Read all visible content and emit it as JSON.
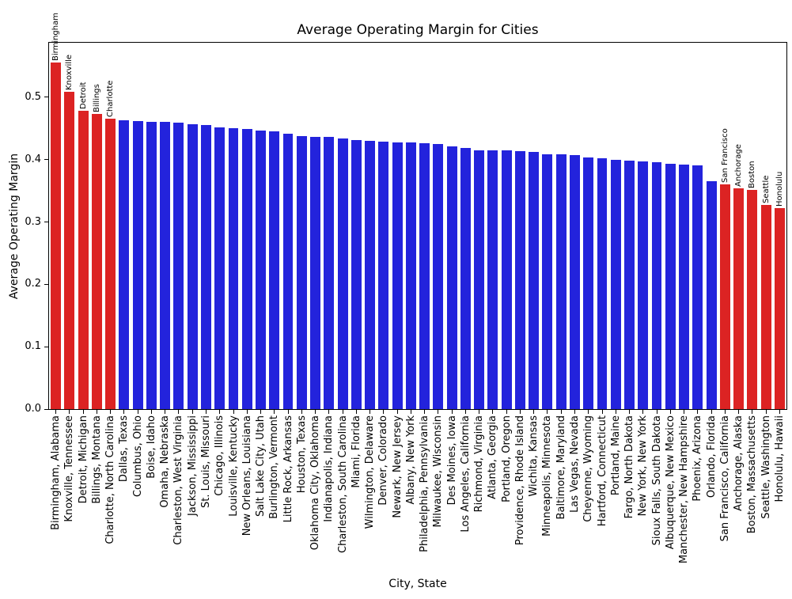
{
  "chart_data": {
    "type": "bar",
    "title": "Average Operating Margin for Cities",
    "xlabel": "City, State",
    "ylabel": "Average Operating Margin",
    "ylim": [
      0,
      0.5875
    ],
    "yticks": [
      0.0,
      0.1,
      0.2,
      0.3,
      0.4,
      0.5
    ],
    "grid": false,
    "legend": null,
    "bar_color_default": "#2323dc",
    "bar_color_highlight": "#dc2323",
    "text_color": "#000000",
    "categories": [
      "Birmingham, Alabama",
      "Knoxville, Tennessee",
      "Detroit, Michigan",
      "Billings, Montana",
      "Charlotte, North Carolina",
      "Dallas, Texas",
      "Columbus, Ohio",
      "Boise, Idaho",
      "Omaha, Nebraska",
      "Charleston, West Virginia",
      "Jackson, Mississippi",
      "St. Louis, Missouri",
      "Chicago, Illinois",
      "Louisville, Kentucky",
      "New Orleans, Louisiana",
      "Salt Lake City, Utah",
      "Burlington, Vermont",
      "Little Rock, Arkansas",
      "Houston, Texas",
      "Oklahoma City, Oklahoma",
      "Indianapolis, Indiana",
      "Charleston, South Carolina",
      "Miami, Florida",
      "Wilmington, Delaware",
      "Denver, Colorado",
      "Newark, New Jersey",
      "Albany, New York",
      "Philadelphia, Pennsylvania",
      "Milwaukee, Wisconsin",
      "Des Moines, Iowa",
      "Los Angeles, California",
      "Richmond, Virginia",
      "Atlanta, Georgia",
      "Portland, Oregon",
      "Providence, Rhode Island",
      "Wichita, Kansas",
      "Minneapolis, Minnesota",
      "Baltimore, Maryland",
      "Las Vegas, Nevada",
      "Cheyenne, Wyoming",
      "Hartford, Connecticut",
      "Portland, Maine",
      "Fargo, North Dakota",
      "New York, New York",
      "Sioux Falls, South Dakota",
      "Albuquerque, New Mexico",
      "Manchester, New Hampshire",
      "Phoenix, Arizona",
      "Orlando, Florida",
      "San Francisco, California",
      "Anchorage, Alaska",
      "Boston, Massachusetts",
      "Seattle, Washington",
      "Honolulu, Hawaii"
    ],
    "values": [
      0.556,
      0.509,
      0.478,
      0.473,
      0.466,
      0.463,
      0.462,
      0.461,
      0.46,
      0.459,
      0.457,
      0.455,
      0.452,
      0.45,
      0.449,
      0.447,
      0.445,
      0.442,
      0.438,
      0.437,
      0.436,
      0.434,
      0.431,
      0.43,
      0.429,
      0.428,
      0.428,
      0.427,
      0.425,
      0.421,
      0.419,
      0.415,
      0.415,
      0.415,
      0.414,
      0.412,
      0.409,
      0.409,
      0.407,
      0.404,
      0.402,
      0.4,
      0.399,
      0.397,
      0.396,
      0.394,
      0.392,
      0.391,
      0.365,
      0.36,
      0.354,
      0.351,
      0.328,
      0.322
    ],
    "highlights": [
      {
        "index": 0,
        "label": "Birmingham"
      },
      {
        "index": 1,
        "label": "Knoxville"
      },
      {
        "index": 2,
        "label": "Detroit"
      },
      {
        "index": 3,
        "label": "Billings"
      },
      {
        "index": 4,
        "label": "Charlotte"
      },
      {
        "index": 49,
        "label": "San Francisco"
      },
      {
        "index": 50,
        "label": "Anchorage"
      },
      {
        "index": 51,
        "label": "Boston"
      },
      {
        "index": 52,
        "label": "Seattle"
      },
      {
        "index": 53,
        "label": "Honolulu"
      }
    ]
  }
}
